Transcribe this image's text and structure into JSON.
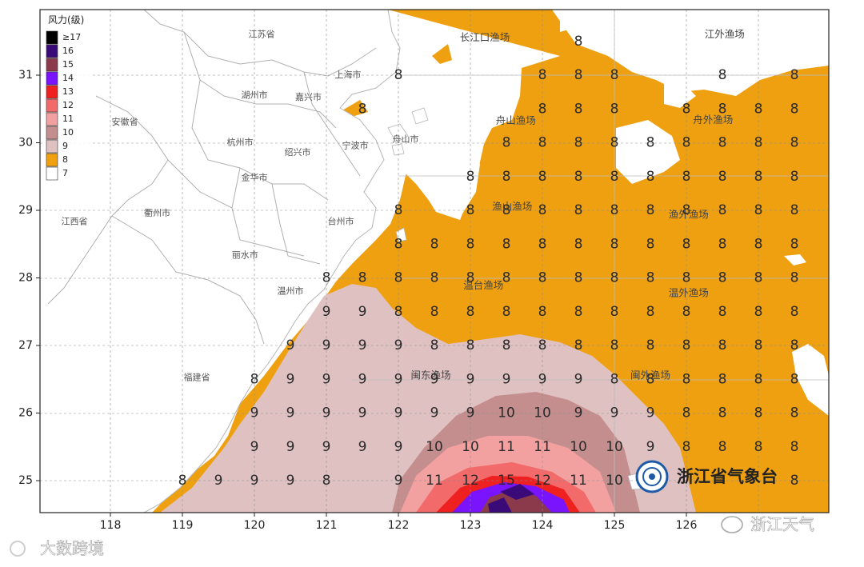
{
  "legend": {
    "title": "风力(级)",
    "items": [
      {
        "label": "≥17",
        "color": "#000000"
      },
      {
        "label": "16",
        "color": "#3a0a78"
      },
      {
        "label": "15",
        "color": "#8a3a4a"
      },
      {
        "label": "14",
        "color": "#7a14ff"
      },
      {
        "label": "13",
        "color": "#ee2020"
      },
      {
        "label": "12",
        "color": "#f26a6a"
      },
      {
        "label": "11",
        "color": "#f2a0a0"
      },
      {
        "label": "10",
        "color": "#c48e8e"
      },
      {
        "label": "9",
        "color": "#dfc1c1"
      },
      {
        "label": "8",
        "color": "#eea010"
      },
      {
        "label": "7",
        "color": "#ffffff"
      }
    ]
  },
  "axes": {
    "lon_ticks": [
      "118",
      "119",
      "120",
      "121",
      "122",
      "123",
      "124",
      "125",
      "126"
    ],
    "lat_ticks": [
      "31",
      "30",
      "29",
      "28",
      "27",
      "26",
      "25"
    ]
  },
  "places": [
    {
      "name": "江苏省",
      "lon": 120.1,
      "lat": 31.6
    },
    {
      "name": "上海市",
      "lon": 121.3,
      "lat": 31.0
    },
    {
      "name": "湖州市",
      "lon": 120.0,
      "lat": 30.7
    },
    {
      "name": "嘉兴市",
      "lon": 120.75,
      "lat": 30.67
    },
    {
      "name": "安徽省",
      "lon": 118.2,
      "lat": 30.3
    },
    {
      "name": "杭州市",
      "lon": 119.8,
      "lat": 30.0
    },
    {
      "name": "舟山市",
      "lon": 122.1,
      "lat": 30.05
    },
    {
      "name": "绍兴市",
      "lon": 120.6,
      "lat": 29.85
    },
    {
      "name": "宁波市",
      "lon": 121.4,
      "lat": 29.95
    },
    {
      "name": "金华市",
      "lon": 120.0,
      "lat": 29.48
    },
    {
      "name": "衢州市",
      "lon": 118.65,
      "lat": 28.95
    },
    {
      "name": "江西省",
      "lon": 117.5,
      "lat": 28.83
    },
    {
      "name": "台州市",
      "lon": 121.2,
      "lat": 28.83
    },
    {
      "name": "丽水市",
      "lon": 119.87,
      "lat": 28.33
    },
    {
      "name": "温州市",
      "lon": 120.5,
      "lat": 27.8
    },
    {
      "name": "福建省",
      "lon": 119.2,
      "lat": 26.52
    }
  ],
  "fishing_zones": [
    {
      "name": "长江口渔场",
      "lon": 123.2,
      "lat": 31.55
    },
    {
      "name": "江外渔场",
      "lon": 126.53,
      "lat": 31.6
    },
    {
      "name": "舟山渔场",
      "lon": 123.63,
      "lat": 30.32
    },
    {
      "name": "舟外渔场",
      "lon": 126.37,
      "lat": 30.33
    },
    {
      "name": "渔山渔场",
      "lon": 123.58,
      "lat": 29.05
    },
    {
      "name": "渔外渔场",
      "lon": 126.03,
      "lat": 28.93
    },
    {
      "name": "温台渔场",
      "lon": 123.18,
      "lat": 27.88
    },
    {
      "name": "温外渔场",
      "lon": 126.03,
      "lat": 27.77
    },
    {
      "name": "闽东渔场",
      "lon": 122.45,
      "lat": 26.55
    },
    {
      "name": "闽外渔场",
      "lon": 125.5,
      "lat": 26.55
    }
  ],
  "wind_labels": [
    {
      "lon": 124.5,
      "lat": 31.5,
      "v": "8"
    },
    {
      "lon": 122.0,
      "lat": 31.0,
      "v": "8"
    },
    {
      "lon": 124.0,
      "lat": 31.0,
      "v": "8"
    },
    {
      "lon": 124.5,
      "lat": 31.0,
      "v": "8"
    },
    {
      "lon": 125.0,
      "lat": 31.0,
      "v": "8"
    },
    {
      "lon": 126.5,
      "lat": 31.0,
      "v": "8"
    },
    {
      "lon": 127.5,
      "lat": 31.0,
      "v": "8"
    },
    {
      "lon": 121.5,
      "lat": 30.5,
      "v": "8"
    },
    {
      "lon": 124.0,
      "lat": 30.5,
      "v": "8"
    },
    {
      "lon": 124.5,
      "lat": 30.5,
      "v": "8"
    },
    {
      "lon": 125.0,
      "lat": 30.5,
      "v": "8"
    },
    {
      "lon": 126.0,
      "lat": 30.5,
      "v": "8"
    },
    {
      "lon": 126.5,
      "lat": 30.5,
      "v": "8"
    },
    {
      "lon": 127.0,
      "lat": 30.5,
      "v": "8"
    },
    {
      "lon": 127.5,
      "lat": 30.5,
      "v": "8"
    },
    {
      "lon": 123.5,
      "lat": 30.0,
      "v": "8"
    },
    {
      "lon": 124.0,
      "lat": 30.0,
      "v": "8"
    },
    {
      "lon": 124.5,
      "lat": 30.0,
      "v": "8"
    },
    {
      "lon": 125.0,
      "lat": 30.0,
      "v": "8"
    },
    {
      "lon": 125.5,
      "lat": 30.0,
      "v": "8"
    },
    {
      "lon": 126.0,
      "lat": 30.0,
      "v": "8"
    },
    {
      "lon": 126.5,
      "lat": 30.0,
      "v": "8"
    },
    {
      "lon": 127.0,
      "lat": 30.0,
      "v": "8"
    },
    {
      "lon": 127.5,
      "lat": 30.0,
      "v": "8"
    },
    {
      "lon": 123.0,
      "lat": 29.5,
      "v": "8"
    },
    {
      "lon": 123.5,
      "lat": 29.5,
      "v": "8"
    },
    {
      "lon": 124.0,
      "lat": 29.5,
      "v": "8"
    },
    {
      "lon": 124.5,
      "lat": 29.5,
      "v": "8"
    },
    {
      "lon": 125.0,
      "lat": 29.5,
      "v": "8"
    },
    {
      "lon": 125.5,
      "lat": 29.5,
      "v": "8"
    },
    {
      "lon": 126.0,
      "lat": 29.5,
      "v": "8"
    },
    {
      "lon": 126.5,
      "lat": 29.5,
      "v": "8"
    },
    {
      "lon": 127.0,
      "lat": 29.5,
      "v": "8"
    },
    {
      "lon": 127.5,
      "lat": 29.5,
      "v": "8"
    },
    {
      "lon": 122.0,
      "lat": 29.0,
      "v": "8"
    },
    {
      "lon": 123.0,
      "lat": 29.0,
      "v": "8"
    },
    {
      "lon": 123.5,
      "lat": 29.0,
      "v": "8"
    },
    {
      "lon": 124.0,
      "lat": 29.0,
      "v": "8"
    },
    {
      "lon": 124.5,
      "lat": 29.0,
      "v": "8"
    },
    {
      "lon": 125.0,
      "lat": 29.0,
      "v": "8"
    },
    {
      "lon": 125.5,
      "lat": 29.0,
      "v": "8"
    },
    {
      "lon": 126.0,
      "lat": 29.0,
      "v": "8"
    },
    {
      "lon": 126.5,
      "lat": 29.0,
      "v": "8"
    },
    {
      "lon": 127.0,
      "lat": 29.0,
      "v": "8"
    },
    {
      "lon": 127.5,
      "lat": 29.0,
      "v": "8"
    },
    {
      "lon": 122.0,
      "lat": 28.5,
      "v": "8"
    },
    {
      "lon": 122.5,
      "lat": 28.5,
      "v": "8"
    },
    {
      "lon": 123.0,
      "lat": 28.5,
      "v": "8"
    },
    {
      "lon": 123.5,
      "lat": 28.5,
      "v": "8"
    },
    {
      "lon": 124.0,
      "lat": 28.5,
      "v": "8"
    },
    {
      "lon": 124.5,
      "lat": 28.5,
      "v": "8"
    },
    {
      "lon": 125.0,
      "lat": 28.5,
      "v": "8"
    },
    {
      "lon": 125.5,
      "lat": 28.5,
      "v": "8"
    },
    {
      "lon": 126.0,
      "lat": 28.5,
      "v": "8"
    },
    {
      "lon": 126.5,
      "lat": 28.5,
      "v": "8"
    },
    {
      "lon": 127.0,
      "lat": 28.5,
      "v": "8"
    },
    {
      "lon": 127.5,
      "lat": 28.5,
      "v": "8"
    },
    {
      "lon": 121.0,
      "lat": 28.0,
      "v": "8"
    },
    {
      "lon": 121.5,
      "lat": 28.0,
      "v": "8"
    },
    {
      "lon": 122.0,
      "lat": 28.0,
      "v": "8"
    },
    {
      "lon": 122.5,
      "lat": 28.0,
      "v": "8"
    },
    {
      "lon": 123.0,
      "lat": 28.0,
      "v": "8"
    },
    {
      "lon": 123.5,
      "lat": 28.0,
      "v": "8"
    },
    {
      "lon": 124.0,
      "lat": 28.0,
      "v": "8"
    },
    {
      "lon": 124.5,
      "lat": 28.0,
      "v": "8"
    },
    {
      "lon": 125.0,
      "lat": 28.0,
      "v": "8"
    },
    {
      "lon": 125.5,
      "lat": 28.0,
      "v": "8"
    },
    {
      "lon": 126.0,
      "lat": 28.0,
      "v": "8"
    },
    {
      "lon": 126.5,
      "lat": 28.0,
      "v": "8"
    },
    {
      "lon": 127.0,
      "lat": 28.0,
      "v": "8"
    },
    {
      "lon": 127.5,
      "lat": 28.0,
      "v": "8"
    },
    {
      "lon": 121.0,
      "lat": 27.5,
      "v": "9"
    },
    {
      "lon": 121.5,
      "lat": 27.5,
      "v": "9"
    },
    {
      "lon": 122.0,
      "lat": 27.5,
      "v": "8"
    },
    {
      "lon": 122.5,
      "lat": 27.5,
      "v": "8"
    },
    {
      "lon": 123.0,
      "lat": 27.5,
      "v": "8"
    },
    {
      "lon": 123.5,
      "lat": 27.5,
      "v": "8"
    },
    {
      "lon": 124.0,
      "lat": 27.5,
      "v": "8"
    },
    {
      "lon": 124.5,
      "lat": 27.5,
      "v": "8"
    },
    {
      "lon": 125.0,
      "lat": 27.5,
      "v": "8"
    },
    {
      "lon": 125.5,
      "lat": 27.5,
      "v": "8"
    },
    {
      "lon": 126.0,
      "lat": 27.5,
      "v": "8"
    },
    {
      "lon": 126.5,
      "lat": 27.5,
      "v": "8"
    },
    {
      "lon": 127.0,
      "lat": 27.5,
      "v": "8"
    },
    {
      "lon": 127.5,
      "lat": 27.5,
      "v": "8"
    },
    {
      "lon": 120.5,
      "lat": 27.0,
      "v": "9"
    },
    {
      "lon": 121.0,
      "lat": 27.0,
      "v": "9"
    },
    {
      "lon": 121.5,
      "lat": 27.0,
      "v": "9"
    },
    {
      "lon": 122.0,
      "lat": 27.0,
      "v": "9"
    },
    {
      "lon": 122.5,
      "lat": 27.0,
      "v": "8"
    },
    {
      "lon": 123.0,
      "lat": 27.0,
      "v": "8"
    },
    {
      "lon": 123.5,
      "lat": 27.0,
      "v": "8"
    },
    {
      "lon": 124.0,
      "lat": 27.0,
      "v": "8"
    },
    {
      "lon": 124.5,
      "lat": 27.0,
      "v": "8"
    },
    {
      "lon": 125.0,
      "lat": 27.0,
      "v": "8"
    },
    {
      "lon": 125.5,
      "lat": 27.0,
      "v": "8"
    },
    {
      "lon": 126.0,
      "lat": 27.0,
      "v": "8"
    },
    {
      "lon": 126.5,
      "lat": 27.0,
      "v": "8"
    },
    {
      "lon": 127.0,
      "lat": 27.0,
      "v": "8"
    },
    {
      "lon": 127.5,
      "lat": 27.0,
      "v": "8"
    },
    {
      "lon": 120.0,
      "lat": 26.5,
      "v": "8"
    },
    {
      "lon": 120.5,
      "lat": 26.5,
      "v": "9"
    },
    {
      "lon": 121.0,
      "lat": 26.5,
      "v": "9"
    },
    {
      "lon": 121.5,
      "lat": 26.5,
      "v": "9"
    },
    {
      "lon": 122.0,
      "lat": 26.5,
      "v": "9"
    },
    {
      "lon": 122.5,
      "lat": 26.5,
      "v": "9"
    },
    {
      "lon": 123.0,
      "lat": 26.5,
      "v": "9"
    },
    {
      "lon": 123.5,
      "lat": 26.5,
      "v": "9"
    },
    {
      "lon": 124.0,
      "lat": 26.5,
      "v": "9"
    },
    {
      "lon": 124.5,
      "lat": 26.5,
      "v": "9"
    },
    {
      "lon": 125.0,
      "lat": 26.5,
      "v": "8"
    },
    {
      "lon": 125.5,
      "lat": 26.5,
      "v": "8"
    },
    {
      "lon": 126.0,
      "lat": 26.5,
      "v": "8"
    },
    {
      "lon": 126.5,
      "lat": 26.5,
      "v": "8"
    },
    {
      "lon": 127.0,
      "lat": 26.5,
      "v": "8"
    },
    {
      "lon": 127.5,
      "lat": 26.5,
      "v": "8"
    },
    {
      "lon": 120.0,
      "lat": 26.0,
      "v": "9"
    },
    {
      "lon": 120.5,
      "lat": 26.0,
      "v": "9"
    },
    {
      "lon": 121.0,
      "lat": 26.0,
      "v": "9"
    },
    {
      "lon": 121.5,
      "lat": 26.0,
      "v": "9"
    },
    {
      "lon": 122.0,
      "lat": 26.0,
      "v": "9"
    },
    {
      "lon": 122.5,
      "lat": 26.0,
      "v": "9"
    },
    {
      "lon": 123.0,
      "lat": 26.0,
      "v": "9"
    },
    {
      "lon": 123.5,
      "lat": 26.0,
      "v": "10"
    },
    {
      "lon": 124.0,
      "lat": 26.0,
      "v": "10"
    },
    {
      "lon": 124.5,
      "lat": 26.0,
      "v": "9"
    },
    {
      "lon": 125.0,
      "lat": 26.0,
      "v": "9"
    },
    {
      "lon": 125.5,
      "lat": 26.0,
      "v": "9"
    },
    {
      "lon": 126.0,
      "lat": 26.0,
      "v": "8"
    },
    {
      "lon": 126.5,
      "lat": 26.0,
      "v": "8"
    },
    {
      "lon": 127.0,
      "lat": 26.0,
      "v": "8"
    },
    {
      "lon": 127.5,
      "lat": 26.0,
      "v": "8"
    },
    {
      "lon": 120.0,
      "lat": 25.5,
      "v": "9"
    },
    {
      "lon": 120.5,
      "lat": 25.5,
      "v": "9"
    },
    {
      "lon": 121.0,
      "lat": 25.5,
      "v": "9"
    },
    {
      "lon": 121.5,
      "lat": 25.5,
      "v": "9"
    },
    {
      "lon": 122.0,
      "lat": 25.5,
      "v": "9"
    },
    {
      "lon": 122.5,
      "lat": 25.5,
      "v": "10"
    },
    {
      "lon": 123.0,
      "lat": 25.5,
      "v": "10"
    },
    {
      "lon": 123.5,
      "lat": 25.5,
      "v": "11"
    },
    {
      "lon": 124.0,
      "lat": 25.5,
      "v": "11"
    },
    {
      "lon": 124.5,
      "lat": 25.5,
      "v": "10"
    },
    {
      "lon": 125.0,
      "lat": 25.5,
      "v": "10"
    },
    {
      "lon": 125.5,
      "lat": 25.5,
      "v": "9"
    },
    {
      "lon": 126.0,
      "lat": 25.5,
      "v": "8"
    },
    {
      "lon": 126.5,
      "lat": 25.5,
      "v": "8"
    },
    {
      "lon": 127.0,
      "lat": 25.5,
      "v": "8"
    },
    {
      "lon": 127.5,
      "lat": 25.5,
      "v": "8"
    },
    {
      "lon": 119.0,
      "lat": 25.0,
      "v": "8"
    },
    {
      "lon": 119.5,
      "lat": 25.0,
      "v": "9"
    },
    {
      "lon": 120.0,
      "lat": 25.0,
      "v": "9"
    },
    {
      "lon": 120.5,
      "lat": 25.0,
      "v": "9"
    },
    {
      "lon": 121.0,
      "lat": 25.0,
      "v": "8"
    },
    {
      "lon": 122.0,
      "lat": 25.0,
      "v": "9"
    },
    {
      "lon": 122.5,
      "lat": 25.0,
      "v": "11"
    },
    {
      "lon": 123.0,
      "lat": 25.0,
      "v": "12"
    },
    {
      "lon": 123.5,
      "lat": 25.0,
      "v": "15"
    },
    {
      "lon": 124.0,
      "lat": 25.0,
      "v": "12"
    },
    {
      "lon": 124.5,
      "lat": 25.0,
      "v": "11"
    },
    {
      "lon": 125.0,
      "lat": 25.0,
      "v": "10"
    },
    {
      "lon": 127.5,
      "lat": 25.0,
      "v": "8"
    }
  ],
  "watermarks": {
    "agency": "浙江省气象台",
    "bottom_left": "大数跨境",
    "bottom_right": "浙江天气"
  }
}
